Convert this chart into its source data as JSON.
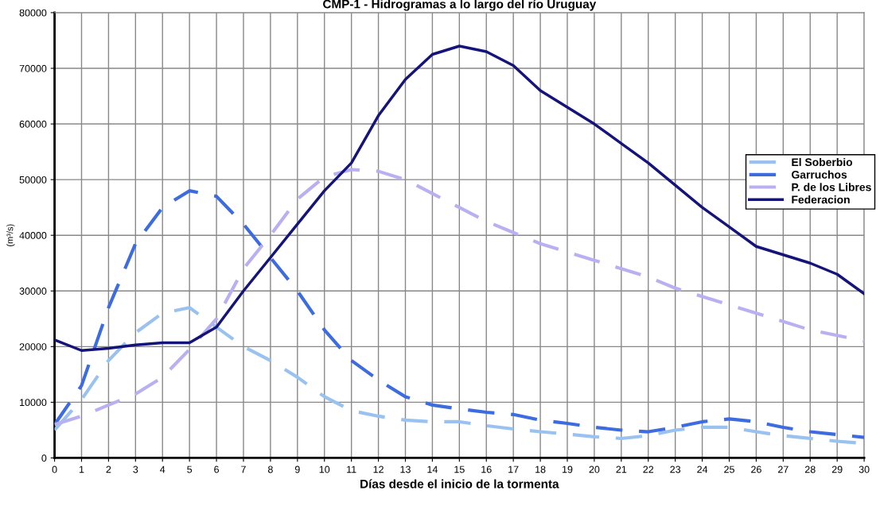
{
  "chart_data": {
    "type": "line",
    "title": "CMP-1 - Hidrogramas a lo largo del río Uruguay",
    "xlabel": "Días desde el inicio de la tormenta",
    "ylabel": "(m³/s)",
    "x": [
      0,
      1,
      2,
      3,
      4,
      5,
      6,
      7,
      8,
      9,
      10,
      11,
      12,
      13,
      14,
      15,
      16,
      17,
      18,
      19,
      20,
      21,
      22,
      23,
      24,
      25,
      26,
      27,
      28,
      29,
      30
    ],
    "series": [
      {
        "name": "El Soberbio",
        "color": "#99c2f0",
        "line_style": "dashed",
        "values": [
          5000,
          10500,
          17500,
          22500,
          26000,
          27000,
          23500,
          20000,
          17500,
          14500,
          11000,
          8500,
          7500,
          6800,
          6500,
          6500,
          5800,
          5200,
          4700,
          4300,
          3800,
          3500,
          4000,
          5000,
          5500,
          5500,
          4700,
          4000,
          3500,
          3000,
          2600
        ]
      },
      {
        "name": "Garruchos",
        "color": "#3d6be0",
        "line_style": "dashed",
        "values": [
          6000,
          13000,
          27000,
          38500,
          45000,
          48000,
          47000,
          42000,
          36000,
          30000,
          23000,
          17500,
          14000,
          11000,
          9500,
          8800,
          8200,
          7800,
          6800,
          6200,
          5500,
          5000,
          4700,
          5500,
          6500,
          7000,
          6500,
          5500,
          4700,
          4200,
          3700
        ]
      },
      {
        "name": "P. de los Libres",
        "color": "#b8b0f0",
        "line_style": "dashed",
        "values": [
          6000,
          7500,
          9500,
          11500,
          14500,
          19500,
          25000,
          34000,
          40000,
          46500,
          50500,
          51800,
          51500,
          50000,
          47500,
          45000,
          42500,
          40500,
          38500,
          37000,
          35500,
          34000,
          32500,
          30500,
          29000,
          27500,
          26000,
          24500,
          23000,
          22000,
          21000
        ]
      },
      {
        "name": "Federacion",
        "color": "#14147a",
        "line_style": "solid",
        "values": [
          21200,
          19300,
          19700,
          20300,
          20700,
          20700,
          23500,
          30000,
          36000,
          42000,
          48000,
          53000,
          61500,
          68000,
          72500,
          74000,
          73000,
          70500,
          66000,
          63000,
          60000,
          56500,
          53000,
          49000,
          45000,
          41500,
          38000,
          36500,
          35000,
          33000,
          29500
        ]
      }
    ],
    "xlim": [
      0,
      30
    ],
    "xticks": [
      0,
      1,
      2,
      3,
      4,
      5,
      6,
      7,
      8,
      9,
      10,
      11,
      12,
      13,
      14,
      15,
      16,
      17,
      18,
      19,
      20,
      21,
      22,
      23,
      24,
      25,
      26,
      27,
      28,
      29,
      30
    ],
    "ylim": [
      0,
      80000
    ],
    "yticks": [
      0,
      10000,
      20000,
      30000,
      40000,
      50000,
      60000,
      70000,
      80000
    ],
    "grid": true,
    "legend": "right",
    "marker": "none"
  }
}
